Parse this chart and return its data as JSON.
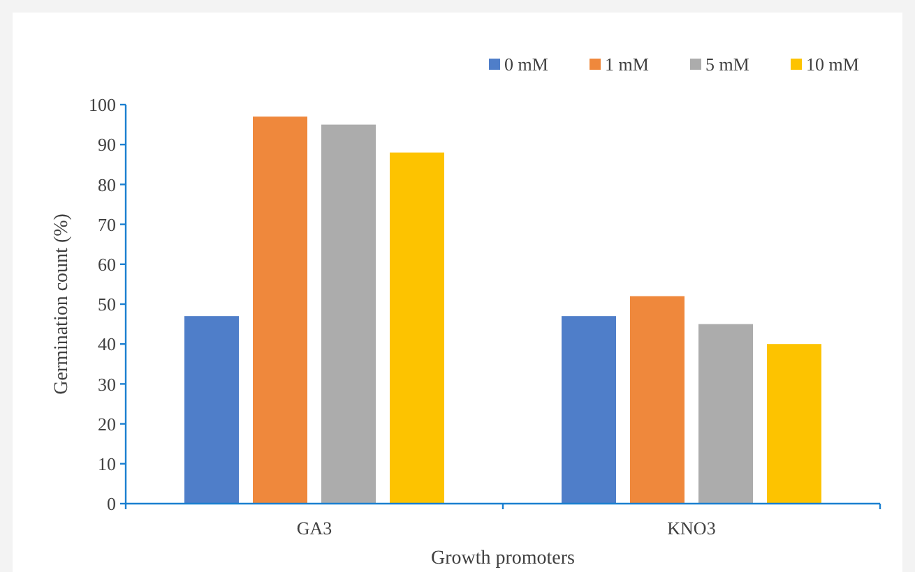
{
  "chart_data": {
    "type": "bar",
    "xlabel": "Growth promoters",
    "ylabel": "Germination count (%)",
    "categories": [
      "GA3",
      "KNO3"
    ],
    "series": [
      {
        "name": "0 mM",
        "color": "#4f7ec9",
        "values": [
          47,
          47
        ]
      },
      {
        "name": "1 mM",
        "color": "#ef883c",
        "values": [
          97,
          52
        ]
      },
      {
        "name": "5 mM",
        "color": "#acacac",
        "values": [
          95,
          45
        ]
      },
      {
        "name": "10 mM",
        "color": "#fdc300",
        "values": [
          88,
          40
        ]
      }
    ],
    "ylim": [
      0,
      100
    ],
    "yticks": [
      0,
      10,
      20,
      30,
      40,
      50,
      60,
      70,
      80,
      90,
      100
    ],
    "grid": false,
    "legend": "top right"
  }
}
